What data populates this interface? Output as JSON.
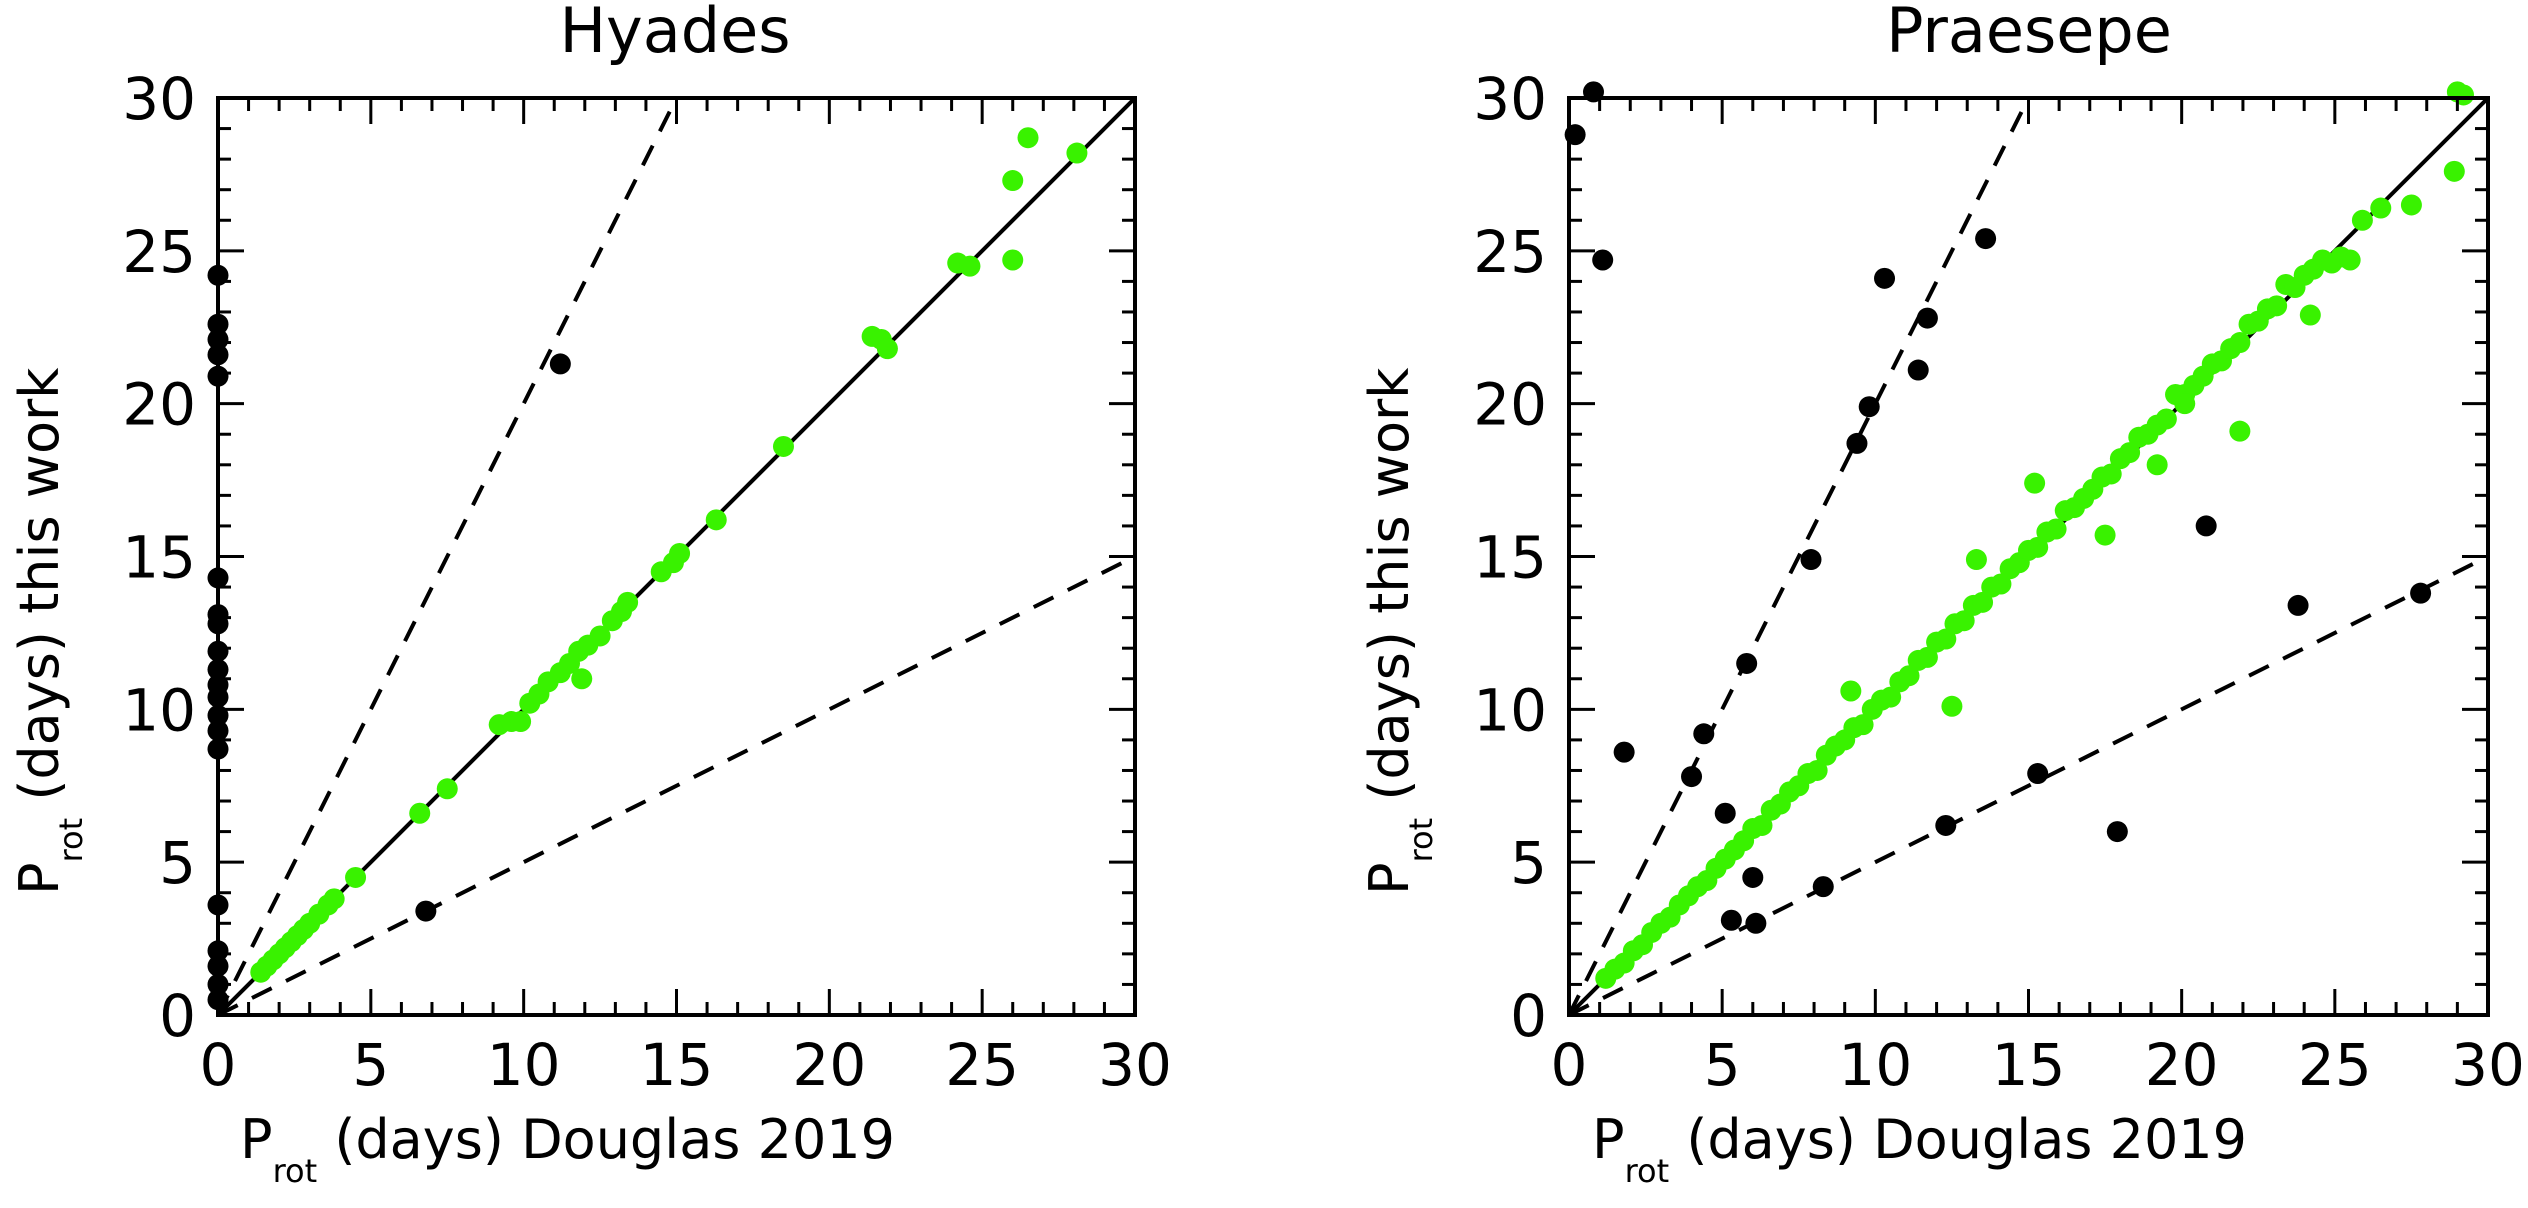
{
  "colors": {
    "cluster_member": "#39f200",
    "outlier": "#000000",
    "axes": "#000000"
  },
  "chart_data": [
    {
      "type": "scatter",
      "title": "Hyades",
      "xlabel": {
        "main": "P",
        "sub": "rot",
        "rest": " (days) Douglas 2019"
      },
      "ylabel": {
        "main": "P",
        "sub": "rot",
        "rest": " (days) this work"
      },
      "xlim": [
        0,
        30
      ],
      "ylim": [
        0,
        30
      ],
      "xticks": [
        "0",
        "5",
        "10",
        "15",
        "20",
        "25",
        "30"
      ],
      "yticks": [
        "0",
        "5",
        "10",
        "15",
        "20",
        "25",
        "30"
      ],
      "reference_lines": [
        {
          "style": "solid",
          "slope": 1
        },
        {
          "style": "dashed",
          "slope": 2
        },
        {
          "style": "dashed",
          "slope": 0.5
        }
      ],
      "series": [
        {
          "color": "#39f200",
          "points": [
            [
              1.4,
              1.4
            ],
            [
              1.6,
              1.6
            ],
            [
              1.8,
              1.8
            ],
            [
              2.0,
              2.0
            ],
            [
              2.2,
              2.2
            ],
            [
              2.4,
              2.4
            ],
            [
              2.6,
              2.6
            ],
            [
              2.8,
              2.8
            ],
            [
              3.0,
              3.0
            ],
            [
              3.3,
              3.3
            ],
            [
              3.6,
              3.6
            ],
            [
              3.8,
              3.8
            ],
            [
              4.5,
              4.5
            ],
            [
              6.6,
              6.6
            ],
            [
              7.5,
              7.4
            ],
            [
              9.2,
              9.5
            ],
            [
              9.6,
              9.6
            ],
            [
              9.9,
              9.6
            ],
            [
              10.2,
              10.2
            ],
            [
              10.5,
              10.5
            ],
            [
              10.8,
              10.9
            ],
            [
              11.2,
              11.2
            ],
            [
              11.5,
              11.5
            ],
            [
              11.8,
              11.9
            ],
            [
              11.9,
              11.0
            ],
            [
              12.1,
              12.1
            ],
            [
              12.5,
              12.4
            ],
            [
              12.9,
              12.9
            ],
            [
              13.2,
              13.2
            ],
            [
              13.4,
              13.5
            ],
            [
              14.5,
              14.5
            ],
            [
              14.9,
              14.8
            ],
            [
              15.1,
              15.1
            ],
            [
              16.3,
              16.2
            ],
            [
              18.5,
              18.6
            ],
            [
              21.4,
              22.2
            ],
            [
              21.7,
              22.1
            ],
            [
              21.9,
              21.8
            ],
            [
              24.2,
              24.6
            ],
            [
              24.6,
              24.5
            ],
            [
              26.0,
              24.7
            ],
            [
              26.0,
              27.3
            ],
            [
              26.5,
              28.7
            ],
            [
              28.1,
              28.2
            ]
          ]
        },
        {
          "color": "#000000",
          "points": [
            [
              0,
              24.2
            ],
            [
              0,
              22.6
            ],
            [
              0,
              22.1
            ],
            [
              0,
              21.6
            ],
            [
              0,
              20.9
            ],
            [
              0,
              14.3
            ],
            [
              0,
              13.1
            ],
            [
              0,
              12.8
            ],
            [
              0,
              11.9
            ],
            [
              0,
              11.3
            ],
            [
              0,
              10.8
            ],
            [
              0,
              10.4
            ],
            [
              0,
              9.8
            ],
            [
              0,
              9.3
            ],
            [
              0,
              8.7
            ],
            [
              0,
              3.6
            ],
            [
              0,
              2.1
            ],
            [
              0,
              1.6
            ],
            [
              0,
              1.0
            ],
            [
              0,
              0.5
            ],
            [
              6.8,
              3.4
            ],
            [
              11.2,
              21.3
            ]
          ]
        }
      ]
    },
    {
      "type": "scatter",
      "title": "Praesepe",
      "xlabel": {
        "main": "P",
        "sub": "rot",
        "rest": " (days) Douglas 2019"
      },
      "ylabel": {
        "main": "P",
        "sub": "rot",
        "rest": " (days) this work"
      },
      "xlim": [
        0,
        30
      ],
      "ylim": [
        0,
        30
      ],
      "xticks": [
        "0",
        "5",
        "10",
        "15",
        "20",
        "25",
        "30"
      ],
      "yticks": [
        "0",
        "5",
        "10",
        "15",
        "20",
        "25",
        "30"
      ],
      "reference_lines": [
        {
          "style": "solid",
          "slope": 1
        },
        {
          "style": "dashed",
          "slope": 2
        },
        {
          "style": "dashed",
          "slope": 0.5
        }
      ],
      "series": [
        {
          "color": "#39f200",
          "points": [
            [
              1.2,
              1.2
            ],
            [
              1.5,
              1.5
            ],
            [
              1.8,
              1.7
            ],
            [
              2.1,
              2.1
            ],
            [
              2.4,
              2.3
            ],
            [
              2.7,
              2.7
            ],
            [
              3.0,
              3.0
            ],
            [
              3.3,
              3.2
            ],
            [
              3.6,
              3.6
            ],
            [
              3.9,
              3.9
            ],
            [
              4.2,
              4.2
            ],
            [
              4.5,
              4.4
            ],
            [
              4.8,
              4.8
            ],
            [
              5.1,
              5.1
            ],
            [
              5.4,
              5.4
            ],
            [
              5.7,
              5.7
            ],
            [
              6.0,
              6.1
            ],
            [
              6.3,
              6.2
            ],
            [
              6.6,
              6.7
            ],
            [
              6.9,
              6.9
            ],
            [
              7.2,
              7.3
            ],
            [
              7.5,
              7.5
            ],
            [
              7.8,
              7.9
            ],
            [
              8.1,
              8.0
            ],
            [
              8.4,
              8.5
            ],
            [
              8.7,
              8.8
            ],
            [
              9.0,
              9.0
            ],
            [
              9.3,
              9.4
            ],
            [
              9.6,
              9.5
            ],
            [
              9.9,
              10.0
            ],
            [
              10.2,
              10.3
            ],
            [
              10.5,
              10.4
            ],
            [
              10.8,
              10.9
            ],
            [
              11.1,
              11.1
            ],
            [
              11.4,
              11.6
            ],
            [
              11.7,
              11.7
            ],
            [
              12.0,
              12.2
            ],
            [
              12.3,
              12.3
            ],
            [
              12.6,
              12.8
            ],
            [
              12.9,
              12.9
            ],
            [
              13.2,
              13.4
            ],
            [
              13.5,
              13.5
            ],
            [
              13.8,
              14.0
            ],
            [
              14.1,
              14.1
            ],
            [
              14.4,
              14.6
            ],
            [
              14.7,
              14.8
            ],
            [
              15.0,
              15.2
            ],
            [
              15.3,
              15.3
            ],
            [
              15.6,
              15.8
            ],
            [
              15.9,
              15.9
            ],
            [
              16.2,
              16.5
            ],
            [
              16.5,
              16.6
            ],
            [
              16.8,
              16.9
            ],
            [
              17.1,
              17.2
            ],
            [
              17.4,
              17.6
            ],
            [
              17.7,
              17.7
            ],
            [
              18.0,
              18.2
            ],
            [
              18.3,
              18.4
            ],
            [
              18.6,
              18.9
            ],
            [
              18.9,
              19.0
            ],
            [
              19.2,
              19.3
            ],
            [
              19.5,
              19.5
            ],
            [
              19.8,
              20.3
            ],
            [
              20.1,
              20.3
            ],
            [
              20.4,
              20.6
            ],
            [
              20.7,
              20.9
            ],
            [
              21.0,
              21.3
            ],
            [
              21.3,
              21.4
            ],
            [
              21.6,
              21.8
            ],
            [
              21.9,
              22.0
            ],
            [
              22.2,
              22.6
            ],
            [
              22.5,
              22.7
            ],
            [
              22.8,
              23.1
            ],
            [
              23.1,
              23.2
            ],
            [
              23.4,
              23.9
            ],
            [
              23.7,
              23.8
            ],
            [
              24.0,
              24.2
            ],
            [
              24.3,
              24.4
            ],
            [
              24.6,
              24.7
            ],
            [
              24.9,
              24.6
            ],
            [
              25.2,
              24.8
            ],
            [
              25.5,
              24.7
            ],
            [
              25.9,
              26.0
            ],
            [
              26.5,
              26.4
            ],
            [
              27.5,
              26.5
            ],
            [
              28.9,
              27.6
            ],
            [
              29.0,
              30.2
            ],
            [
              29.2,
              30.1
            ],
            [
              15.2,
              17.4
            ],
            [
              17.5,
              15.7
            ],
            [
              19.2,
              18.0
            ],
            [
              21.9,
              19.1
            ],
            [
              12.5,
              10.1
            ],
            [
              9.2,
              10.6
            ],
            [
              13.3,
              14.9
            ],
            [
              24.2,
              22.9
            ],
            [
              20.1,
              20.0
            ]
          ]
        },
        {
          "color": "#000000",
          "points": [
            [
              0.2,
              28.8
            ],
            [
              0.8,
              30.2
            ],
            [
              1.1,
              24.7
            ],
            [
              1.8,
              8.6
            ],
            [
              4.0,
              7.8
            ],
            [
              4.4,
              9.2
            ],
            [
              5.1,
              6.6
            ],
            [
              5.3,
              3.1
            ],
            [
              5.8,
              11.5
            ],
            [
              6.0,
              4.5
            ],
            [
              6.1,
              3.0
            ],
            [
              7.9,
              14.9
            ],
            [
              8.3,
              4.2
            ],
            [
              9.4,
              18.7
            ],
            [
              9.8,
              19.9
            ],
            [
              10.3,
              24.1
            ],
            [
              11.4,
              21.1
            ],
            [
              11.7,
              22.8
            ],
            [
              12.3,
              6.2
            ],
            [
              13.6,
              25.4
            ],
            [
              15.3,
              7.9
            ],
            [
              17.9,
              6.0
            ],
            [
              20.8,
              16.0
            ],
            [
              23.8,
              13.4
            ],
            [
              27.8,
              13.8
            ]
          ]
        }
      ]
    }
  ]
}
